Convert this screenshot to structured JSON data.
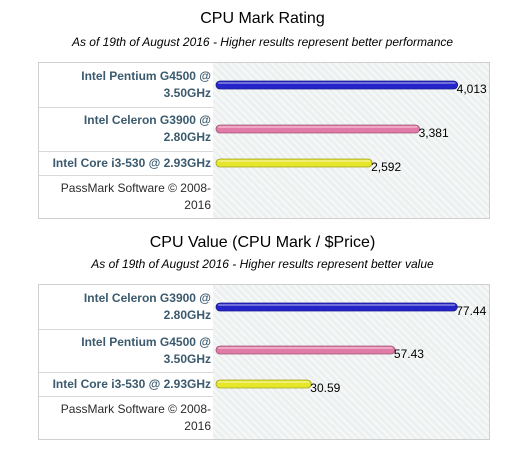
{
  "chart_data": [
    {
      "type": "bar",
      "orientation": "horizontal",
      "title": "CPU Mark Rating",
      "subtitle": "As of 19th of August 2016 - Higher results represent better performance",
      "categories": [
        "Intel Pentium G4500 @ 3.50GHz",
        "Intel Celeron G3900 @ 2.80GHz",
        "Intel Core i3-530 @ 2.93GHz"
      ],
      "values": [
        4013,
        3381,
        2592
      ],
      "value_labels": [
        "4,013",
        "3,381",
        "2,592"
      ],
      "bar_colors": [
        "#2424c8",
        "#e27aa7",
        "#e6e62a"
      ],
      "footer": "PassMark Software © 2008-2016",
      "xlim": [
        0,
        4500
      ],
      "grid": true
    },
    {
      "type": "bar",
      "orientation": "horizontal",
      "title": "CPU Value (CPU Mark / $Price)",
      "subtitle": "As of 19th of August 2016 - Higher results represent better value",
      "categories": [
        "Intel Celeron G3900 @ 2.80GHz",
        "Intel Pentium G4500 @ 3.50GHz",
        "Intel Core i3-530 @ 2.93GHz"
      ],
      "values": [
        77.44,
        57.43,
        30.59
      ],
      "value_labels": [
        "77.44",
        "57.43",
        "30.59"
      ],
      "bar_colors": [
        "#2424c8",
        "#e27aa7",
        "#e6e62a"
      ],
      "footer": "PassMark Software © 2008-2016",
      "xlim": [
        0,
        87
      ],
      "grid": true
    }
  ]
}
